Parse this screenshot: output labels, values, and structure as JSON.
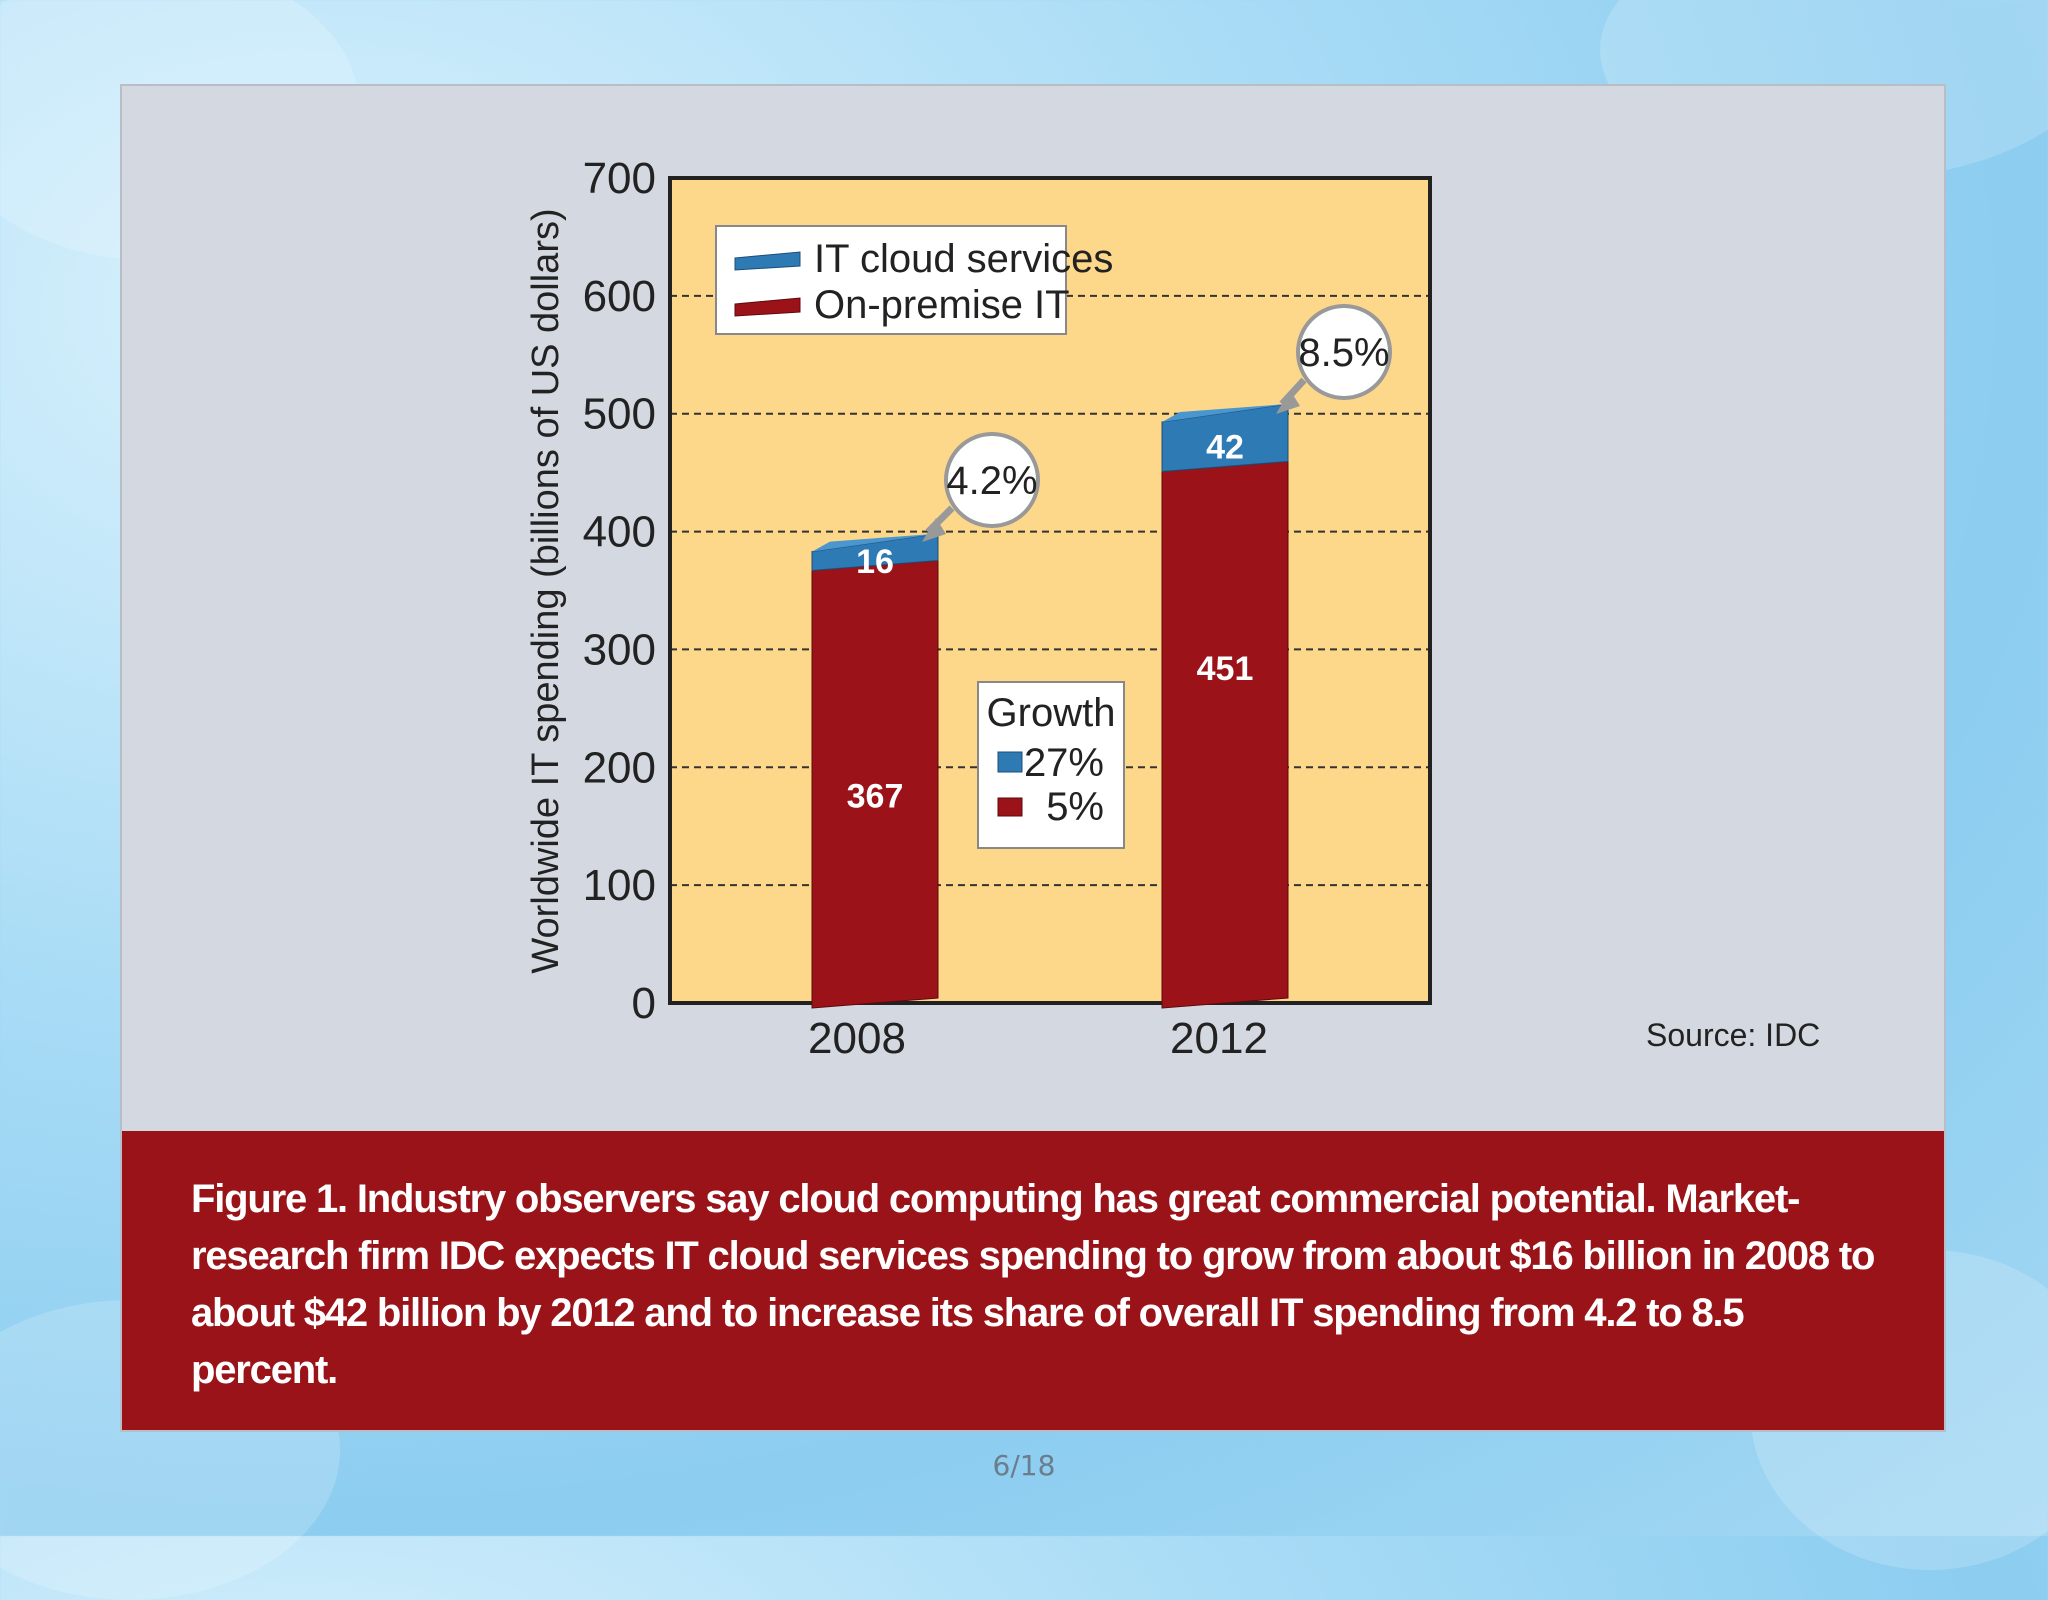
{
  "chart_data": {
    "type": "bar",
    "stacked": true,
    "categories": [
      "2008",
      "2012"
    ],
    "series": [
      {
        "name": "On-premise IT",
        "values": [
          367,
          451
        ],
        "color": "#9b1318"
      },
      {
        "name": "IT cloud services",
        "values": [
          16,
          42
        ],
        "color": "#2e7ab5"
      }
    ],
    "ylabel": "Worldwide IT spending (billions  of US dollars)",
    "xlabel": "",
    "ylim": [
      0,
      700
    ],
    "yticks": [
      "0",
      "100",
      "200",
      "300",
      "400",
      "500",
      "600",
      "700"
    ],
    "grid": true,
    "legend_placement": "top-left",
    "annotations": [
      {
        "category": "2008",
        "text": "4.2%"
      },
      {
        "category": "2012",
        "text": "8.5%"
      }
    ],
    "growth_box": {
      "title": "Growth",
      "items": [
        {
          "label": "27%",
          "series": "IT cloud services"
        },
        {
          "label": "5%",
          "series": "On-premise IT"
        }
      ]
    },
    "source": "Source: IDC",
    "plot_background": "#fdd88a"
  },
  "caption": "Figure 1. Industry observers say cloud computing has great commercial potential. Market-research firm IDC expects IT cloud services spending to grow from about $16 billion in 2008 to about $42 billion by 2012 and to increase its share of overall IT spending from 4.2 to 8.5 percent.",
  "page_indicator": "6/18"
}
